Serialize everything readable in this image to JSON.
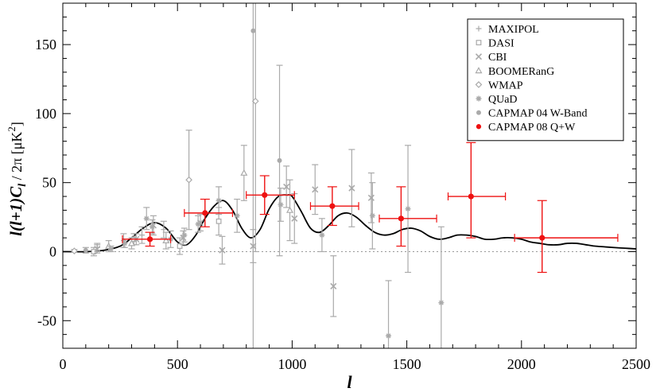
{
  "chart_data": {
    "type": "scatter",
    "xlabel": "l",
    "ylabel": "l(l+1)C_l / 2π [μK²]",
    "ylabel_parts": {
      "a": "l(l+1)C",
      "sub": "l",
      "b": " / 2π [μK",
      "sup": "2",
      "c": "]"
    },
    "xlim": [
      0,
      2500
    ],
    "ylim": [
      -70,
      180
    ],
    "x_ticks": [
      0,
      500,
      1000,
      1500,
      2000,
      2500
    ],
    "y_ticks": [
      -50,
      0,
      50,
      100,
      150
    ],
    "zero_line": true,
    "grid": false,
    "legend_position": "top-right",
    "colors": {
      "gray": "#aaaaaa",
      "red": "#ee1111",
      "model": "#000000"
    },
    "series": [
      {
        "name": "MAXIPOL",
        "marker": "plus",
        "points": [
          {
            "x": 150,
            "y": 3,
            "yerr": [
              3,
              3
            ]
          },
          {
            "x": 265,
            "y": 8,
            "yerr": [
              5,
              5
            ]
          },
          {
            "x": 345,
            "y": 12,
            "yerr": [
              6,
              6
            ]
          },
          {
            "x": 440,
            "y": 16,
            "yerr": [
              6,
              6
            ]
          }
        ]
      },
      {
        "name": "DASI",
        "marker": "square",
        "points": [
          {
            "x": 135,
            "y": 0,
            "yerr": [
              3,
              3
            ]
          },
          {
            "x": 310,
            "y": 9,
            "yerr": [
              4,
              4
            ]
          },
          {
            "x": 510,
            "y": 4,
            "yerr": [
              6,
              6
            ]
          },
          {
            "x": 680,
            "y": 22,
            "yerr": [
              10,
              10
            ]
          }
        ]
      },
      {
        "name": "CBI",
        "marker": "x",
        "points": [
          {
            "x": 150,
            "y": 2,
            "yerr": [
              3,
              3
            ]
          },
          {
            "x": 320,
            "y": 9,
            "yerr": [
              4,
              4
            ]
          },
          {
            "x": 395,
            "y": 19,
            "yerr": [
              7,
              7
            ]
          },
          {
            "x": 525,
            "y": 10,
            "yerr": [
              5,
              5
            ]
          },
          {
            "x": 600,
            "y": 21,
            "yerr": [
              6,
              6
            ]
          },
          {
            "x": 695,
            "y": 1,
            "yerr": [
              10,
              10
            ]
          },
          {
            "x": 830,
            "y": 4,
            "yerr": [
              12,
              12
            ]
          },
          {
            "x": 975,
            "y": 47,
            "yerr": [
              15,
              15
            ]
          },
          {
            "x": 1010,
            "y": 24,
            "yerr": [
              18,
              18
            ]
          },
          {
            "x": 1100,
            "y": 45,
            "yerr": [
              18,
              18
            ]
          },
          {
            "x": 1180,
            "y": -25,
            "yerr": [
              22,
              22
            ]
          },
          {
            "x": 1260,
            "y": 46,
            "yerr": [
              28,
              28
            ]
          },
          {
            "x": 1345,
            "y": 39,
            "yerr": [
              18,
              18
            ]
          }
        ]
      },
      {
        "name": "BOOMERanG",
        "marker": "triangle",
        "points": [
          {
            "x": 200,
            "y": 4,
            "yerr": [
              4,
              4
            ]
          },
          {
            "x": 300,
            "y": 6,
            "yerr": [
              4,
              4
            ]
          },
          {
            "x": 450,
            "y": 8,
            "yerr": [
              6,
              6
            ]
          },
          {
            "x": 790,
            "y": 57,
            "yerr": [
              20,
              20
            ]
          },
          {
            "x": 990,
            "y": 30,
            "yerr": [
              22,
              22
            ]
          }
        ]
      },
      {
        "name": "WMAP",
        "marker": "diamond",
        "points": [
          {
            "x": 50,
            "y": 0.5,
            "yerr": [
              1,
              1
            ]
          },
          {
            "x": 550,
            "y": 52,
            "yerr": [
              36,
              36
            ]
          },
          {
            "x": 840,
            "y": 109,
            "yerr": [
              109,
              109
            ]
          }
        ]
      },
      {
        "name": "QUaD",
        "marker": "asterisk",
        "points": [
          {
            "x": 210,
            "y": 2,
            "yerr": [
              2,
              2
            ]
          },
          {
            "x": 270,
            "y": 6,
            "yerr": [
              3,
              3
            ]
          },
          {
            "x": 365,
            "y": 24,
            "yerr": [
              8,
              8
            ]
          },
          {
            "x": 390,
            "y": 18,
            "yerr": [
              5,
              5
            ]
          },
          {
            "x": 470,
            "y": 9,
            "yerr": [
              6,
              6
            ]
          },
          {
            "x": 530,
            "y": 12,
            "yerr": [
              5,
              5
            ]
          },
          {
            "x": 590,
            "y": 20,
            "yerr": [
              6,
              6
            ]
          },
          {
            "x": 680,
            "y": 37,
            "yerr": [
              10,
              10
            ]
          },
          {
            "x": 760,
            "y": 26,
            "yerr": [
              12,
              12
            ]
          },
          {
            "x": 950,
            "y": 34,
            "yerr": [
              12,
              12
            ]
          },
          {
            "x": 1130,
            "y": 12,
            "yerr": [
              12,
              12
            ]
          },
          {
            "x": 1350,
            "y": 26,
            "yerr": [
              24,
              24
            ]
          },
          {
            "x": 1420,
            "y": -61,
            "yerr": [
              40,
              40
            ]
          },
          {
            "x": 1505,
            "y": 31,
            "yerr": [
              46,
              46
            ]
          },
          {
            "x": 1650,
            "y": -37,
            "yerr": [
              55,
              55
            ]
          }
        ]
      },
      {
        "name": "CAPMAP 04 W-Band",
        "marker": "circle",
        "points": [
          {
            "x": 100,
            "y": 1,
            "yerr": [
              2,
              2
            ]
          },
          {
            "x": 830,
            "y": 160,
            "yerr": [
              240,
              240
            ]
          },
          {
            "x": 945,
            "y": 66,
            "yerr": [
              69,
              69
            ]
          }
        ]
      },
      {
        "name": "CAPMAP 08 Q+W",
        "marker": "filled-circle",
        "points": [
          {
            "x": 380,
            "y": 9,
            "yerr": [
              5,
              5
            ],
            "xrange": [
              260,
              470
            ]
          },
          {
            "x": 620,
            "y": 28,
            "yerr": [
              10,
              10
            ],
            "xrange": [
              530,
              740
            ]
          },
          {
            "x": 880,
            "y": 41,
            "yerr": [
              14,
              14
            ],
            "xrange": [
              800,
              1010
            ]
          },
          {
            "x": 1175,
            "y": 33,
            "yerr": [
              14,
              14
            ],
            "xrange": [
              1080,
              1290
            ]
          },
          {
            "x": 1475,
            "y": 24,
            "yerr": [
              20,
              23
            ],
            "xrange": [
              1380,
              1630
            ]
          },
          {
            "x": 1780,
            "y": 40,
            "yerr": [
              30,
              39
            ],
            "xrange": [
              1680,
              1930
            ]
          },
          {
            "x": 2090,
            "y": 10,
            "yerr": [
              25,
              27
            ],
            "xrange": [
              1970,
              2420
            ]
          }
        ]
      }
    ],
    "model_curve": {
      "x": [
        0,
        100,
        180,
        250,
        300,
        350,
        400,
        450,
        500,
        540,
        580,
        620,
        660,
        700,
        740,
        780,
        820,
        860,
        900,
        940,
        980,
        1000,
        1040,
        1080,
        1120,
        1160,
        1200,
        1240,
        1280,
        1320,
        1360,
        1400,
        1440,
        1480,
        1520,
        1560,
        1600,
        1640,
        1680,
        1720,
        1760,
        1800,
        1840,
        1880,
        1920,
        1960,
        2000,
        2040,
        2080,
        2120,
        2160,
        2200,
        2240,
        2280,
        2320,
        2360,
        2400,
        2450,
        2500
      ],
      "y": [
        0,
        0,
        1,
        4,
        10,
        17,
        21,
        17,
        7,
        5,
        12,
        24,
        33,
        37,
        30,
        17,
        10,
        16,
        31,
        40,
        41,
        40,
        29,
        17,
        14,
        19,
        26,
        28,
        25,
        19,
        14,
        12,
        13,
        16,
        17,
        15,
        11,
        9,
        10,
        12,
        12,
        11,
        9,
        9,
        10,
        10,
        9,
        7,
        6,
        5,
        5,
        6,
        6,
        5,
        4,
        3.5,
        3,
        2.5,
        2
      ]
    }
  }
}
